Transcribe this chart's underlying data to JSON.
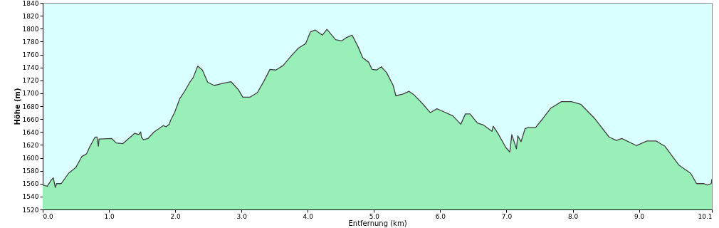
{
  "chart_data": {
    "type": "area",
    "xlabel": "Entfernung  (km)",
    "ylabel": "Höhe (m)",
    "xlim": [
      0,
      10.1
    ],
    "ylim": [
      1520,
      1840
    ],
    "xticks": [
      {
        "value": 0,
        "label": "0.0"
      },
      {
        "value": 1,
        "label": "1.0"
      },
      {
        "value": 2,
        "label": "2.0"
      },
      {
        "value": 3,
        "label": "3.0"
      },
      {
        "value": 4,
        "label": "4.0"
      },
      {
        "value": 5,
        "label": "5.0"
      },
      {
        "value": 6,
        "label": "6.0"
      },
      {
        "value": 7,
        "label": "7.0"
      },
      {
        "value": 8,
        "label": "8.0"
      },
      {
        "value": 9,
        "label": "9.0"
      },
      10.1
    ],
    "yticks": [
      1520,
      1540,
      1560,
      1580,
      1600,
      1620,
      1640,
      1660,
      1680,
      1700,
      1720,
      1740,
      1760,
      1780,
      1800,
      1820,
      1840
    ],
    "grid": false,
    "x": [
      0,
      0.07,
      0.125,
      0.16,
      0.19,
      0.21,
      0.28,
      0.39,
      0.5,
      0.59,
      0.66,
      0.72,
      0.79,
      0.82,
      0.84,
      0.85,
      1.04,
      1.11,
      1.21,
      1.39,
      1.45,
      1.48,
      1.49,
      1.52,
      1.59,
      1.68,
      1.82,
      1.86,
      1.91,
      1.93,
      1.99,
      2.02,
      2.07,
      2.13,
      2.22,
      2.27,
      2.34,
      2.41,
      2.49,
      2.59,
      2.7,
      2.84,
      2.95,
      3.02,
      3.13,
      3.24,
      3.34,
      3.43,
      3.52,
      3.63,
      3.76,
      3.86,
      3.97,
      4.04,
      4.11,
      4.22,
      4.29,
      4.42,
      4.51,
      4.58,
      4.67,
      4.76,
      4.83,
      4.92,
      4.97,
      5.04,
      5.11,
      5.19,
      5.29,
      5.33,
      5.44,
      5.53,
      5.61,
      5.74,
      5.85,
      5.95,
      6.04,
      6.19,
      6.31,
      6.38,
      6.45,
      6.56,
      6.65,
      6.78,
      6.8,
      6.87,
      6.99,
      7.05,
      7.08,
      7.15,
      7.17,
      7.22,
      7.28,
      7.33,
      7.44,
      7.55,
      7.67,
      7.83,
      7.98,
      8.12,
      8.33,
      8.55,
      8.66,
      8.74,
      8.96,
      9.12,
      9.26,
      9.39,
      9.6,
      9.78,
      9.87,
      9.98,
      10.03,
      10.09,
      10.1
    ],
    "series": [
      {
        "color": "#98f0b8",
        "values": [
          1558,
          1556,
          1565,
          1569,
          1554,
          1560,
          1560,
          1576,
          1585,
          1602,
          1606,
          1619,
          1632,
          1632,
          1618,
          1629,
          1630,
          1623,
          1622,
          1638,
          1636,
          1640,
          1632,
          1628,
          1630,
          1640,
          1650,
          1648,
          1652,
          1658,
          1670,
          1678,
          1692,
          1701,
          1717,
          1724,
          1742,
          1736,
          1717,
          1712,
          1715,
          1718,
          1706,
          1694,
          1694,
          1701,
          1719,
          1737,
          1736,
          1743,
          1759,
          1770,
          1777,
          1795,
          1798,
          1790,
          1799,
          1783,
          1781,
          1786,
          1790,
          1772,
          1755,
          1748,
          1737,
          1736,
          1741,
          1732,
          1712,
          1696,
          1699,
          1703,
          1697,
          1683,
          1670,
          1676,
          1672,
          1665,
          1652,
          1668,
          1668,
          1654,
          1651,
          1641,
          1649,
          1638,
          1616,
          1609,
          1636,
          1614,
          1634,
          1625,
          1645,
          1647,
          1647,
          1661,
          1677,
          1687,
          1687,
          1683,
          1661,
          1632,
          1627,
          1630,
          1619,
          1626,
          1626,
          1618,
          1589,
          1576,
          1560,
          1560,
          1558,
          1560,
          1567
        ]
      }
    ]
  }
}
